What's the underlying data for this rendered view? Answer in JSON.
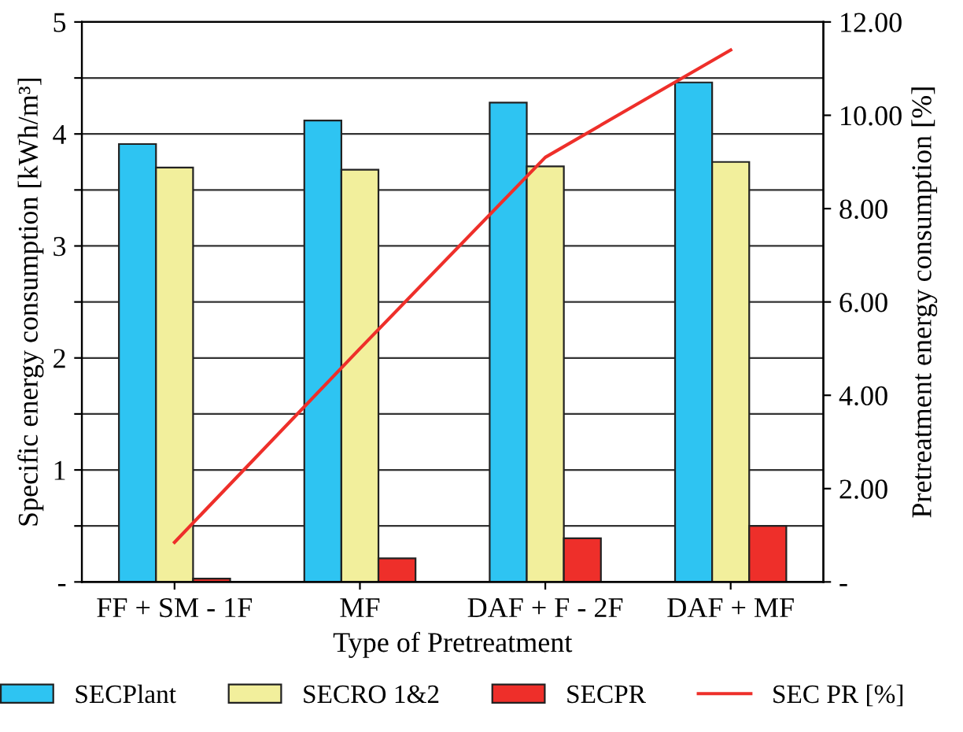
{
  "chart_data": {
    "type": "bar",
    "xlabel": "Type of Pretreatment",
    "ylabel": "Specific energy consumption [kWh/m³]",
    "y2label": "Pretreatment energy consumption [%]",
    "categories": [
      "FF + SM - 1F",
      "MF",
      "DAF + F - 2F",
      "DAF + MF"
    ],
    "series": [
      {
        "name": "SECPlant",
        "color": "#2ec4f2",
        "values": [
          3.91,
          4.12,
          4.28,
          4.46
        ]
      },
      {
        "name": "SECRO 1&2",
        "color": "#f2ef9c",
        "values": [
          3.7,
          3.68,
          3.71,
          3.75
        ]
      },
      {
        "name": "SECPR",
        "color": "#ee2f2a",
        "values": [
          0.03,
          0.21,
          0.39,
          0.5
        ]
      },
      {
        "name": "SEC PR [%]",
        "type": "line",
        "axis": "y2",
        "color": "#ee2f2a",
        "values": [
          0.85,
          5.0,
          9.1,
          11.4
        ]
      }
    ],
    "ylim": [
      0,
      5
    ],
    "yticks": [
      {
        "value": 0,
        "label": "-"
      },
      {
        "value": 0.5,
        "label": null
      },
      1,
      {
        "value": 1.5,
        "label": null
      },
      2,
      {
        "value": 2.5,
        "label": null
      },
      3,
      {
        "value": 3.5,
        "label": null
      },
      4,
      {
        "value": 4.5,
        "label": null
      },
      5
    ],
    "y2lim": [
      0,
      12
    ],
    "y2ticks": [
      {
        "value": 0,
        "label": "-"
      },
      {
        "value": 2,
        "label": "2.00"
      },
      {
        "value": 4,
        "label": "4.00"
      },
      {
        "value": 6,
        "label": "6.00"
      },
      {
        "value": 8,
        "label": "8.00"
      },
      {
        "value": 10,
        "label": "10.00"
      },
      {
        "value": 12,
        "label": "12.00"
      }
    ],
    "grid": "y",
    "legend": "bottom"
  }
}
